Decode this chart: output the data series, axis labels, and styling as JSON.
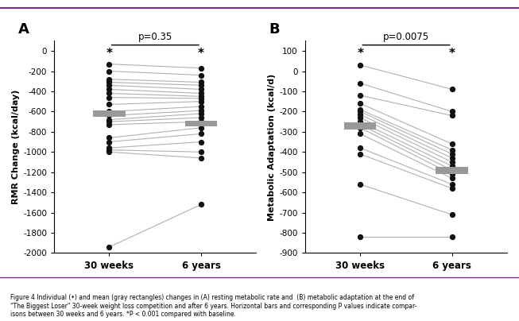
{
  "panel_A": {
    "title": "A",
    "pvalue": "p=0.35",
    "ylabel": "RMR Change (kcal/day)",
    "xlabel_30w": "30 weeks",
    "xlabel_6y": "6 years",
    "ylim": [
      -2000,
      100
    ],
    "yticks": [
      0,
      -200,
      -400,
      -600,
      -800,
      -1000,
      -1200,
      -1400,
      -1600,
      -1800,
      -2000
    ],
    "mean_30w": -620,
    "mean_6y": -720,
    "data_30w": [
      -130,
      -200,
      -280,
      -310,
      -340,
      -380,
      -420,
      -460,
      -530,
      -600,
      -640,
      -680,
      -700,
      -730,
      -860,
      -900,
      -960,
      -980,
      -1000,
      -1940
    ],
    "data_6y": [
      -170,
      -240,
      -310,
      -340,
      -380,
      -420,
      -450,
      -470,
      -500,
      -550,
      -590,
      -620,
      -660,
      -700,
      -760,
      -820,
      -900,
      -1000,
      -1060,
      -1520
    ]
  },
  "panel_B": {
    "title": "B",
    "pvalue": "p=0.0075",
    "ylabel": "Metabolic Adaptation (kcal/d)",
    "xlabel_30w": "30 weeks",
    "xlabel_6y": "6 years",
    "ylim": [
      -900,
      150
    ],
    "yticks": [
      100,
      0,
      -100,
      -200,
      -300,
      -400,
      -500,
      -600,
      -700,
      -800,
      -900
    ],
    "mean_30w": -270,
    "mean_6y": -490,
    "data_30w": [
      30,
      -60,
      -120,
      -160,
      -190,
      -200,
      -215,
      -230,
      -250,
      -265,
      -280,
      -310,
      -380,
      -410,
      -560,
      -820
    ],
    "data_6y": [
      -90,
      -200,
      -220,
      -360,
      -390,
      -410,
      -430,
      -450,
      -470,
      -490,
      -510,
      -530,
      -560,
      -580,
      -710,
      -820
    ]
  },
  "line_color": "#b0b0b0",
  "dot_color": "#111111",
  "mean_bar_color": "#999999",
  "background_color": "#ffffff",
  "border_color": "#7b2d8b",
  "caption": "Figure 4 Individual (•) and mean (gray rectangles) changes in (A) resting metabolic rate and  (B) metabolic adaptation at the end of\n\"The Biggest Loser\" 30-week weight loss competition and after 6 years. Horizontal bars and corresponding P values indicate compar-\nisons between 30 weeks and 6 years. *P < 0.001 compared with baseline."
}
